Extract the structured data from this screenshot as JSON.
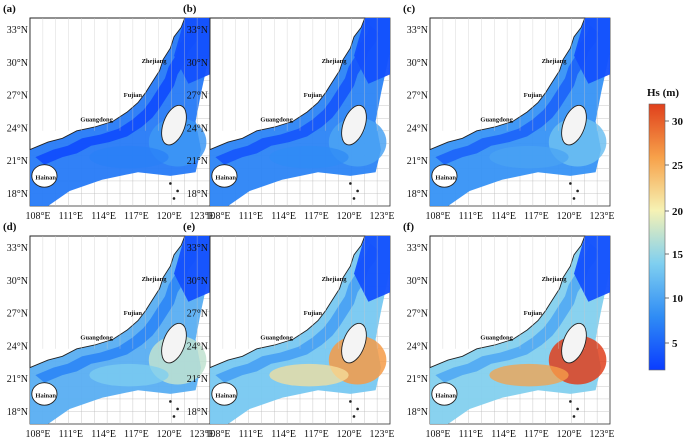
{
  "figure": {
    "panels": [
      {
        "label": "(a)",
        "intensity": 0.12,
        "peak": 0.1
      },
      {
        "label": "(b)",
        "intensity": 0.18,
        "peak": 0.14
      },
      {
        "label": "(c)",
        "intensity": 0.26,
        "peak": 0.24
      },
      {
        "label": "(d)",
        "intensity": 0.45,
        "peak": 0.42
      },
      {
        "label": "(e)",
        "intensity": 0.62,
        "peak": 0.78
      },
      {
        "label": "(f)",
        "intensity": 0.68,
        "peak": 1.0
      }
    ],
    "x_ticks": [
      "108°E",
      "111°E",
      "114°E",
      "117°E",
      "120°E",
      "123°E"
    ],
    "y_ticks": [
      "33°N",
      "30°N",
      "27°N",
      "24°N",
      "21°N",
      "18°N"
    ],
    "places": {
      "zhejiang": "Zhejiang",
      "fujian": "Fujian",
      "guangdong": "Guangdong",
      "hainan": "Hainan"
    },
    "colorbar": {
      "title": "Hs (m)",
      "ticks": [
        "30",
        "25",
        "20",
        "15",
        "10",
        "5"
      ],
      "colors": [
        "#0a3cff",
        "#2f8cf5",
        "#7fcff0",
        "#f6f2b4",
        "#f7a14a",
        "#e0401c"
      ]
    }
  }
}
